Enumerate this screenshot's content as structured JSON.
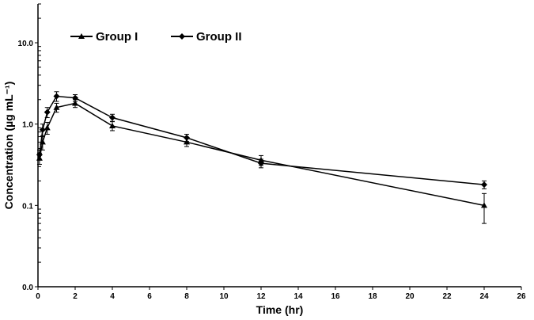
{
  "chart_data": {
    "type": "line",
    "title": "",
    "xlabel": "Time (hr)",
    "ylabel": "Concentration (µg mL⁻¹)",
    "xlim": [
      0,
      26
    ],
    "ylim": [
      0.01,
      30
    ],
    "yscale": "log",
    "x_ticks": [
      "0",
      "2",
      "4",
      "6",
      "8",
      "10",
      "12",
      "14",
      "16",
      "18",
      "20",
      "22",
      "24",
      "26"
    ],
    "y_ticks": [
      {
        "value": 0.01,
        "label": "0.0"
      },
      {
        "value": 0.1,
        "label": "0.1"
      },
      {
        "value": 1,
        "label": "1.0"
      },
      {
        "value": 10,
        "label": "10.0"
      }
    ],
    "grid": false,
    "legend_position": "top-left",
    "x": [
      0.083,
      0.25,
      0.5,
      1,
      2,
      4,
      8,
      12,
      24
    ],
    "series": [
      {
        "name": "Group I",
        "marker": "triangle",
        "values": [
          0.38,
          0.6,
          0.9,
          1.6,
          1.8,
          0.95,
          0.6,
          0.36,
          0.1
        ],
        "errors": [
          0.06,
          0.12,
          0.15,
          0.2,
          0.2,
          0.12,
          0.07,
          0.05,
          0.04
        ]
      },
      {
        "name": "Group II",
        "marker": "diamond",
        "values": [
          0.42,
          0.85,
          1.4,
          2.2,
          2.1,
          1.2,
          0.68,
          0.33,
          0.18
        ],
        "errors": [
          0.06,
          0.15,
          0.2,
          0.3,
          0.2,
          0.12,
          0.07,
          0.04,
          0.02
        ]
      }
    ],
    "colors": {
      "line": "#000000"
    }
  }
}
